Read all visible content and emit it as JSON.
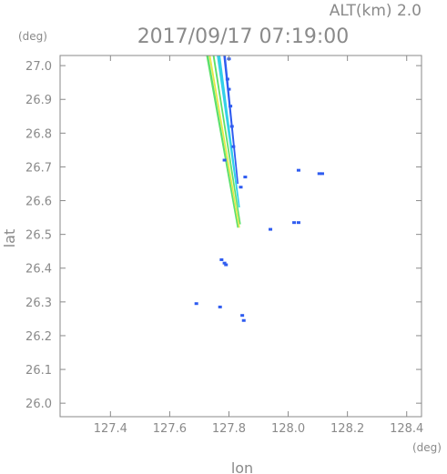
{
  "chart_data": {
    "type": "scatter",
    "title": "2017/09/17 07:19:00",
    "subtitle": "ALT(km) 2.0",
    "xlabel": "lon",
    "ylabel": "lat",
    "x_unit": "(deg)",
    "y_unit": "(deg)",
    "xlim": [
      127.23,
      128.45
    ],
    "ylim": [
      25.96,
      27.03
    ],
    "xticks": [
      "127.4",
      "127.6",
      "127.8",
      "128.0",
      "128.2",
      "128.4"
    ],
    "xtick_values": [
      127.4,
      127.6,
      127.8,
      128.0,
      128.2,
      128.4
    ],
    "yticks": [
      "26.0",
      "26.1",
      "26.2",
      "26.3",
      "26.4",
      "26.5",
      "26.6",
      "26.7",
      "26.8",
      "26.9",
      "27.0"
    ],
    "ytick_values": [
      26.0,
      26.1,
      26.2,
      26.3,
      26.4,
      26.5,
      26.6,
      26.7,
      26.8,
      26.9,
      27.0
    ],
    "grid": false,
    "colors": {
      "blue": "#2f5cf0",
      "cyan": "#33d0e8",
      "green": "#5ce06a",
      "yellow": "#e8e84a",
      "axis": "#8a8a8a"
    },
    "bands": [
      {
        "name": "yellow-band",
        "color": "yellow",
        "top": [
          127.735,
          27.03
        ],
        "bottom": [
          127.835,
          26.52
        ],
        "width": 0.006
      },
      {
        "name": "green-band-left",
        "color": "green",
        "top": [
          127.727,
          27.03
        ],
        "bottom": [
          127.83,
          26.52
        ],
        "width": 0.008
      },
      {
        "name": "green-band-right",
        "color": "green",
        "top": [
          127.748,
          27.03
        ],
        "bottom": [
          127.838,
          26.53
        ],
        "width": 0.006
      },
      {
        "name": "cyan-band",
        "color": "cyan",
        "top": [
          127.765,
          27.03
        ],
        "bottom": [
          127.835,
          26.58
        ],
        "width": 0.012
      },
      {
        "name": "blue-band",
        "color": "blue",
        "top": [
          127.785,
          27.03
        ],
        "bottom": [
          127.83,
          26.65
        ],
        "width": 0.008
      }
    ],
    "points": [
      {
        "x": 127.8,
        "y": 27.02,
        "color": "blue"
      },
      {
        "x": 127.795,
        "y": 26.96,
        "color": "blue"
      },
      {
        "x": 127.8,
        "y": 26.93,
        "color": "blue"
      },
      {
        "x": 127.805,
        "y": 26.88,
        "color": "blue"
      },
      {
        "x": 127.81,
        "y": 26.82,
        "color": "blue"
      },
      {
        "x": 127.815,
        "y": 26.76,
        "color": "blue"
      },
      {
        "x": 127.785,
        "y": 26.72,
        "color": "blue"
      },
      {
        "x": 127.84,
        "y": 26.64,
        "color": "blue"
      },
      {
        "x": 127.855,
        "y": 26.67,
        "color": "blue"
      },
      {
        "x": 128.035,
        "y": 26.69,
        "color": "blue"
      },
      {
        "x": 128.105,
        "y": 26.68,
        "color": "blue"
      },
      {
        "x": 128.115,
        "y": 26.68,
        "color": "blue"
      },
      {
        "x": 128.02,
        "y": 26.535,
        "color": "blue"
      },
      {
        "x": 128.035,
        "y": 26.535,
        "color": "blue"
      },
      {
        "x": 127.94,
        "y": 26.515,
        "color": "blue"
      },
      {
        "x": 127.775,
        "y": 26.425,
        "color": "blue"
      },
      {
        "x": 127.785,
        "y": 26.415,
        "color": "blue"
      },
      {
        "x": 127.79,
        "y": 26.41,
        "color": "blue"
      },
      {
        "x": 127.69,
        "y": 26.295,
        "color": "blue"
      },
      {
        "x": 127.77,
        "y": 26.285,
        "color": "blue"
      },
      {
        "x": 127.845,
        "y": 26.26,
        "color": "blue"
      },
      {
        "x": 127.85,
        "y": 26.245,
        "color": "blue"
      }
    ]
  }
}
